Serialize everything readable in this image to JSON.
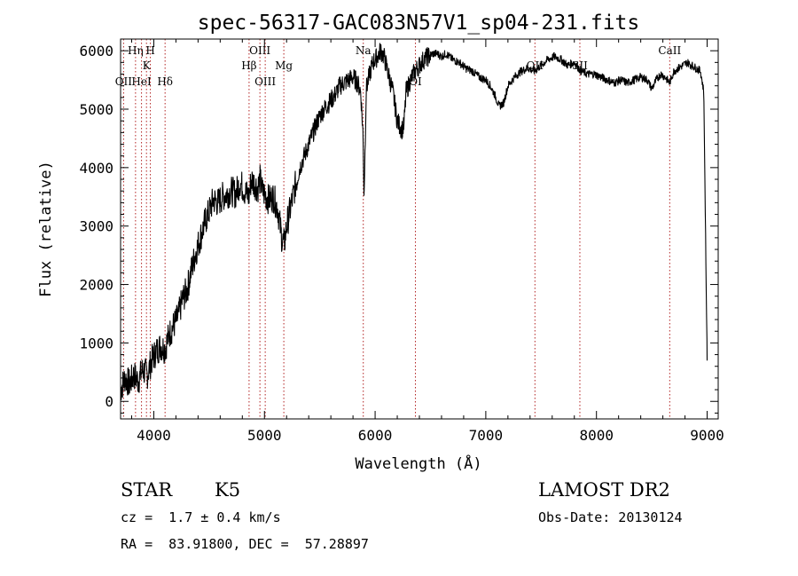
{
  "chart_data": {
    "type": "line",
    "title": "spec-56317-GAC083N57V1_sp04-231.fits",
    "xlabel": "Wavelength (Å)",
    "ylabel": "Flux (relative)",
    "xlim": [
      3700,
      9100
    ],
    "ylim": [
      -300,
      6200
    ],
    "xticks": [
      4000,
      5000,
      6000,
      7000,
      8000,
      9000
    ],
    "yticks": [
      0,
      1000,
      2000,
      3000,
      4000,
      5000,
      6000
    ],
    "grid": false,
    "line_color": "#000000",
    "marker_color": "#b22222",
    "series": [
      {
        "x": [
          3700,
          3740,
          3780,
          3820,
          3860,
          3900,
          3940,
          3980,
          4020,
          4060,
          4100,
          4140,
          4180,
          4220,
          4260,
          4300,
          4340,
          4380,
          4420,
          4460,
          4500,
          4540,
          4580,
          4620,
          4660,
          4700,
          4740,
          4780,
          4820,
          4860,
          4880,
          4900,
          4920,
          4940,
          4960,
          4980,
          5000,
          5040,
          5080,
          5120,
          5160,
          5180,
          5200,
          5240,
          5280,
          5320,
          5360,
          5400,
          5440,
          5480,
          5520,
          5560,
          5600,
          5640,
          5680,
          5720,
          5760,
          5800,
          5840,
          5870,
          5890,
          5900,
          5920,
          5950,
          5980,
          6020,
          6050,
          6080,
          6120,
          6160,
          6200,
          6240,
          6260,
          6280,
          6320,
          6360,
          6400,
          6440,
          6480,
          6520,
          6560,
          6600,
          6640,
          6700,
          6760,
          6820,
          6880,
          6940,
          7000,
          7040,
          7080,
          7120,
          7160,
          7200,
          7260,
          7320,
          7380,
          7440,
          7500,
          7560,
          7620,
          7680,
          7740,
          7800,
          7860,
          7920,
          7980,
          8040,
          8100,
          8160,
          8220,
          8280,
          8340,
          8400,
          8460,
          8500,
          8540,
          8580,
          8620,
          8660,
          8700,
          8740,
          8780,
          8820,
          8860,
          8900,
          8940,
          8970,
          9000
        ],
        "y": [
          200,
          400,
          300,
          450,
          350,
          550,
          450,
          700,
          850,
          950,
          900,
          1150,
          1300,
          1450,
          1750,
          1900,
          2250,
          2550,
          2800,
          3050,
          3250,
          3450,
          3400,
          3500,
          3550,
          3600,
          3550,
          3750,
          3600,
          3500,
          3800,
          3750,
          3700,
          3650,
          3800,
          3600,
          3550,
          3450,
          3500,
          3300,
          2750,
          2700,
          3000,
          3350,
          3700,
          4000,
          4200,
          4400,
          4600,
          4800,
          4950,
          5050,
          5150,
          5250,
          5400,
          5450,
          5500,
          5550,
          5450,
          5300,
          4600,
          3500,
          5350,
          5600,
          5800,
          5900,
          6000,
          5900,
          5600,
          5300,
          4800,
          4650,
          4700,
          5300,
          5500,
          5650,
          5750,
          5850,
          5900,
          5950,
          5950,
          5900,
          5950,
          5850,
          5800,
          5700,
          5650,
          5550,
          5500,
          5400,
          5250,
          5050,
          5100,
          5400,
          5550,
          5650,
          5700,
          5650,
          5750,
          5850,
          5900,
          5850,
          5750,
          5800,
          5650,
          5600,
          5600,
          5550,
          5500,
          5450,
          5500,
          5450,
          5500,
          5550,
          5500,
          5350,
          5500,
          5600,
          5550,
          5450,
          5650,
          5700,
          5750,
          5800,
          5750,
          5700,
          5650,
          5300,
          700
        ]
      }
    ],
    "lines": [
      {
        "label": "OII",
        "x": 3727,
        "row": 2
      },
      {
        "label": "Hη",
        "x": 3835,
        "row": 0
      },
      {
        "label": "HeI",
        "x": 3889,
        "row": 2
      },
      {
        "label": "K",
        "x": 3934,
        "row": 1
      },
      {
        "label": "H",
        "x": 3969,
        "row": 0
      },
      {
        "label": "Hδ",
        "x": 4102,
        "row": 2
      },
      {
        "label": "Hβ",
        "x": 4861,
        "row": 1
      },
      {
        "label": "OIII",
        "x": 4959,
        "row": 0
      },
      {
        "label": "OIII",
        "x": 5007,
        "row": 2
      },
      {
        "label": "Mg",
        "x": 5175,
        "row": 1
      },
      {
        "label": "Na",
        "x": 5893,
        "row": 0
      },
      {
        "label": "OI",
        "x": 6364,
        "row": 2
      },
      {
        "label": "OII",
        "x": 7444,
        "row": 1
      },
      {
        "label": "SII",
        "x": 7850,
        "row": 1
      },
      {
        "label": "CaII",
        "x": 8662,
        "row": 0
      }
    ]
  },
  "info": {
    "object_class": "STAR",
    "subclass": "K5",
    "survey": "LAMOST DR2",
    "redshift": "cz =  1.7 ± 0.4 km/s",
    "obs_date": "Obs-Date: 20130124",
    "coords": "RA =  83.91800, DEC =  57.28897"
  }
}
